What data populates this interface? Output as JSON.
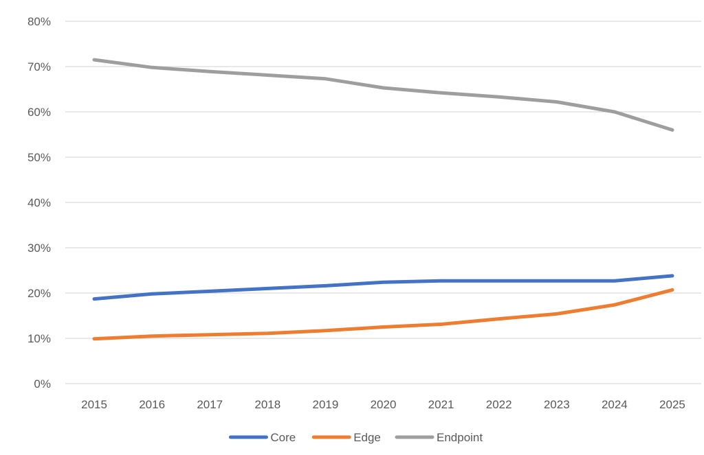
{
  "chart_data": {
    "type": "line",
    "title": "",
    "xlabel": "",
    "ylabel": "",
    "categories": [
      "2015",
      "2016",
      "2017",
      "2018",
      "2019",
      "2020",
      "2021",
      "2022",
      "2023",
      "2024",
      "2025"
    ],
    "y_ticks": [
      "0%",
      "10%",
      "20%",
      "30%",
      "40%",
      "50%",
      "60%",
      "70%",
      "80%"
    ],
    "ylim": [
      0,
      80
    ],
    "y_unit": "%",
    "grid": true,
    "legend_position": "bottom",
    "series": [
      {
        "name": "Core",
        "color": "#4472c4",
        "values": [
          18.7,
          19.8,
          20.4,
          21.0,
          21.6,
          22.4,
          22.7,
          22.7,
          22.7,
          22.7,
          23.8
        ]
      },
      {
        "name": "Edge",
        "color": "#ed7d31",
        "values": [
          9.9,
          10.5,
          10.8,
          11.1,
          11.7,
          12.5,
          13.1,
          14.3,
          15.4,
          17.4,
          20.7
        ]
      },
      {
        "name": "Endpoint",
        "color": "#9e9e9e",
        "values": [
          71.5,
          69.8,
          68.9,
          68.1,
          67.3,
          65.3,
          64.2,
          63.3,
          62.2,
          60.0,
          56.0
        ]
      }
    ]
  }
}
